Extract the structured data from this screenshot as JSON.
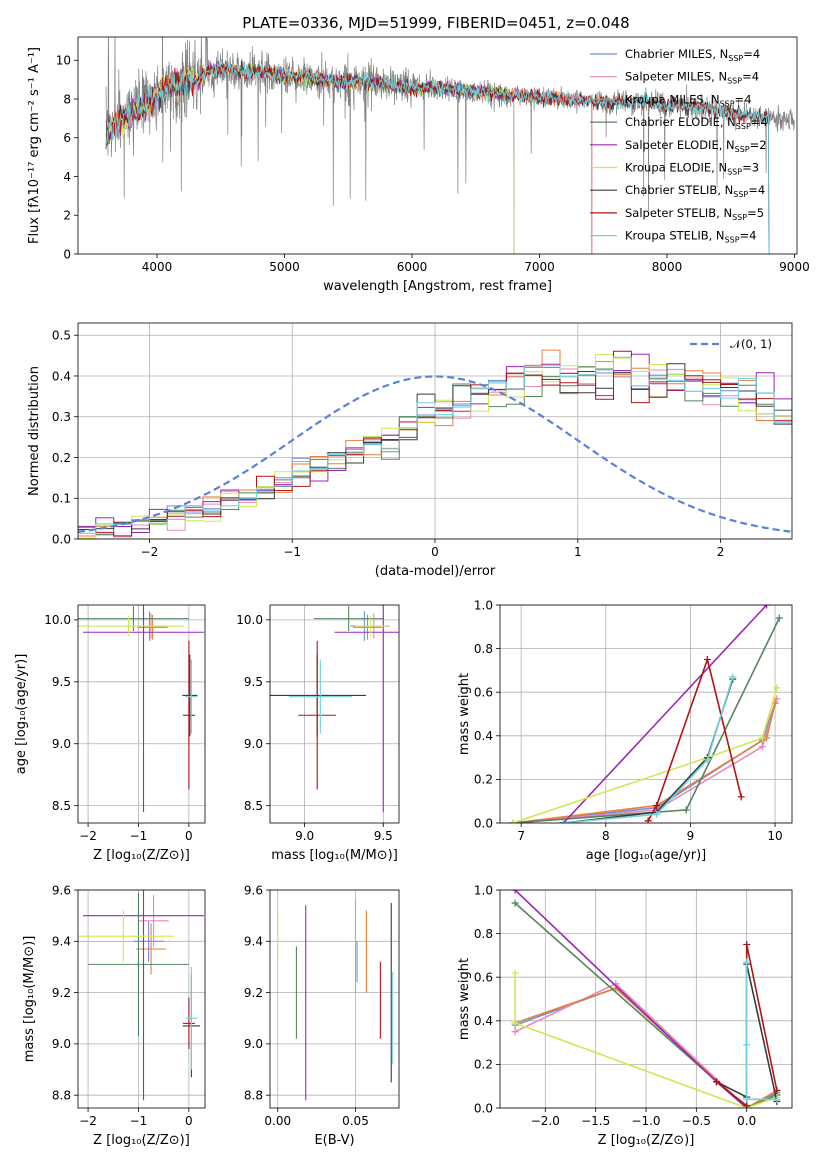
{
  "title": "PLATE=0336, MJD=51999, FIBERID=0451, z=0.048",
  "colors": {
    "Chabrier MILES": "#6f8fd9",
    "Salpeter MILES": "#e889b8",
    "Kroupa MILES": "#e8803a",
    "Chabrier ELODIE": "#55855e",
    "Salpeter ELODIE": "#9b27b5",
    "Kroupa ELODIE": "#cfe84f",
    "Chabrier STELIB": "#3b3b3b",
    "Salpeter STELIB": "#b01515",
    "Kroupa STELIB": "#6fd3de",
    "data": "#7f7f7f",
    "normal": "#5a82d6"
  },
  "chart_data": [
    {
      "type": "line",
      "id": "spectrum",
      "xlabel": "wavelength [Angstrom, rest frame]",
      "ylabel": "Flux [fλ10⁻¹⁷ erg cm⁻² s⁻¹ A⁻¹]",
      "xlim": [
        3380,
        9020
      ],
      "ylim": [
        0,
        11.2
      ],
      "xticks": [
        4000,
        5000,
        6000,
        7000,
        8000,
        9000
      ],
      "yticks": [
        0,
        2,
        4,
        6,
        8,
        10
      ],
      "legend_position": "top-right",
      "legend": [
        {
          "name": "Chabrier MILES",
          "nssp": "4"
        },
        {
          "name": "Salpeter MILES",
          "nssp": "4"
        },
        {
          "name": "Kroupa MILES",
          "nssp": "4"
        },
        {
          "name": "Chabrier ELODIE",
          "nssp": "4"
        },
        {
          "name": "Salpeter ELODIE",
          "nssp": "2"
        },
        {
          "name": "Kroupa ELODIE",
          "nssp": "3"
        },
        {
          "name": "Chabrier STELIB",
          "nssp": "4"
        },
        {
          "name": "Salpeter STELIB",
          "nssp": "5"
        },
        {
          "name": "Kroupa STELIB",
          "nssp": "4"
        }
      ],
      "data_range": [
        3600,
        9000
      ],
      "model_ranges": {
        "MILES": [
          3600,
          7410
        ],
        "ELODIE": [
          3600,
          6800
        ],
        "STELIB": [
          3600,
          8800
        ]
      },
      "continuum": [
        [
          3600,
          6.2
        ],
        [
          3700,
          6.9
        ],
        [
          3800,
          7.3
        ],
        [
          3900,
          7.6
        ],
        [
          4000,
          8.2
        ],
        [
          4100,
          8.7
        ],
        [
          4200,
          9.0
        ],
        [
          4300,
          8.9
        ],
        [
          4400,
          9.4
        ],
        [
          4500,
          9.6
        ],
        [
          4600,
          9.5
        ],
        [
          4700,
          9.3
        ],
        [
          4800,
          9.4
        ],
        [
          5000,
          9.2
        ],
        [
          5200,
          9.1
        ],
        [
          5400,
          8.9
        ],
        [
          5600,
          8.9
        ],
        [
          5800,
          8.8
        ],
        [
          6000,
          8.6
        ],
        [
          6200,
          8.6
        ],
        [
          6400,
          8.4
        ],
        [
          6600,
          8.3
        ],
        [
          6800,
          8.2
        ],
        [
          7000,
          8.1
        ],
        [
          7200,
          8.0
        ],
        [
          7400,
          7.9
        ],
        [
          7600,
          7.8
        ],
        [
          7800,
          7.9
        ],
        [
          8000,
          7.7
        ],
        [
          8300,
          7.5
        ],
        [
          8600,
          7.2
        ],
        [
          8800,
          7.0
        ],
        [
          9000,
          6.9
        ]
      ]
    },
    {
      "type": "line",
      "id": "residuals",
      "xlabel": "(data-model)/error",
      "ylabel": "Normed distribution",
      "xlim": [
        -2.5,
        2.5
      ],
      "ylim": [
        0,
        0.53
      ],
      "xticks": [
        -2,
        -1,
        0,
        1,
        2
      ],
      "yticks": [
        0.0,
        0.1,
        0.2,
        0.3,
        0.4,
        0.5
      ],
      "legend_position": "top-right",
      "normal_label": "𝒩(0, 1)",
      "bin_width": 0.125,
      "bin_start": -2.5,
      "histogram_base": [
        0.02,
        0.025,
        0.03,
        0.04,
        0.05,
        0.055,
        0.065,
        0.075,
        0.09,
        0.1,
        0.12,
        0.14,
        0.16,
        0.175,
        0.19,
        0.21,
        0.24,
        0.26,
        0.285,
        0.305,
        0.32,
        0.34,
        0.355,
        0.365,
        0.375,
        0.385,
        0.39,
        0.395,
        0.4,
        0.4,
        0.4,
        0.4,
        0.395,
        0.39,
        0.38,
        0.375,
        0.36,
        0.35,
        0.33,
        0.315,
        0.295,
        0.275,
        0.25,
        0.23,
        0.21,
        0.19,
        0.17,
        0.15,
        0.13,
        0.115,
        0.1,
        0.09,
        0.075,
        0.065,
        0.055,
        0.045,
        0.04,
        0.035,
        0.03,
        0.027
      ]
    },
    {
      "type": "scatter",
      "id": "age-vs-Z",
      "xlabel": "Z [log₁₀(Z/Z⊙)]",
      "ylabel": "age  [log₁₀(age/yr)]",
      "xlim": [
        -2.2,
        0.32
      ],
      "ylim": [
        8.36,
        10.12
      ],
      "xticks": [
        -2,
        -1,
        0
      ],
      "yticks": [
        8.5,
        9.0,
        9.5,
        10.0
      ],
      "points": [
        {
          "model": "Chabrier MILES",
          "x": -0.78,
          "xe": 0.3,
          "y": 9.95,
          "ye": 0.12
        },
        {
          "model": "Salpeter MILES",
          "x": -0.75,
          "xe": 0.32,
          "y": 9.95,
          "ye": 0.1
        },
        {
          "model": "Kroupa MILES",
          "x": -0.72,
          "xe": 0.3,
          "y": 9.94,
          "ye": 0.1
        },
        {
          "model": "Chabrier ELODIE",
          "x": -1.1,
          "xe": 1.1,
          "y": 10.01,
          "ye": 0.1
        },
        {
          "model": "Salpeter ELODIE",
          "x": -0.9,
          "xe": 1.2,
          "y": 9.9,
          "ye": 1.45
        },
        {
          "model": "Kroupa ELODIE",
          "x": -1.2,
          "xe": 1.1,
          "y": 9.95,
          "ye": 0.08
        },
        {
          "model": "Chabrier STELIB",
          "x": 0.02,
          "xe": 0.15,
          "y": 9.39,
          "ye": 0.33
        },
        {
          "model": "Salpeter STELIB",
          "x": 0.0,
          "xe": 0.12,
          "y": 9.23,
          "ye": 0.6
        },
        {
          "model": "Kroupa STELIB",
          "x": 0.05,
          "xe": 0.12,
          "y": 9.38,
          "ye": 0.3
        }
      ]
    },
    {
      "type": "scatter",
      "id": "age-vs-mass",
      "xlabel": "mass [log₁₀(M/M⊙)]",
      "ylabel": "",
      "xlim": [
        8.78,
        9.6
      ],
      "ylim": [
        8.36,
        10.12
      ],
      "xticks": [
        9.0,
        9.5
      ],
      "yticks": [
        8.5,
        9.0,
        9.5,
        10.0
      ],
      "points": [
        {
          "model": "Chabrier MILES",
          "x": 9.38,
          "xe": 0.09,
          "y": 9.95,
          "ye": 0.12
        },
        {
          "model": "Salpeter MILES",
          "x": 9.44,
          "xe": 0.1,
          "y": 9.95,
          "ye": 0.1
        },
        {
          "model": "Kroupa MILES",
          "x": 9.4,
          "xe": 0.09,
          "y": 9.94,
          "ye": 0.1
        },
        {
          "model": "Chabrier ELODIE",
          "x": 9.28,
          "xe": 0.22,
          "y": 10.01,
          "ye": 0.1
        },
        {
          "model": "Salpeter ELODIE",
          "x": 9.5,
          "xe": 0.31,
          "y": 9.9,
          "ye": 1.45
        },
        {
          "model": "Kroupa ELODIE",
          "x": 9.42,
          "xe": 0.1,
          "y": 9.95,
          "ye": 0.08
        },
        {
          "model": "Chabrier STELIB",
          "x": 9.08,
          "xe": 0.31,
          "y": 9.39,
          "ye": 0.33
        },
        {
          "model": "Salpeter STELIB",
          "x": 9.08,
          "xe": 0.12,
          "y": 9.23,
          "ye": 0.6
        },
        {
          "model": "Kroupa STELIB",
          "x": 9.1,
          "xe": 0.2,
          "y": 9.38,
          "ye": 0.3
        }
      ]
    },
    {
      "type": "line",
      "id": "massweight-vs-age",
      "xlabel": "age  [log₁₀(age/yr)]",
      "ylabel": "mass weight",
      "xlim": [
        6.75,
        10.2
      ],
      "ylim": [
        0,
        1
      ],
      "xticks": [
        7,
        8,
        9,
        10
      ],
      "yticks": [
        0.0,
        0.2,
        0.4,
        0.6,
        0.8,
        1.0
      ],
      "series": [
        {
          "model": "Chabrier MILES",
          "x": [
            6.9,
            8.6,
            9.85,
            10.0
          ],
          "y": [
            0.0,
            0.07,
            0.38,
            0.55
          ]
        },
        {
          "model": "Salpeter MILES",
          "x": [
            6.9,
            8.6,
            9.85,
            10.02
          ],
          "y": [
            0.0,
            0.06,
            0.35,
            0.57
          ]
        },
        {
          "model": "Kroupa MILES",
          "x": [
            6.9,
            8.6,
            9.9,
            10.0
          ],
          "y": [
            0.0,
            0.08,
            0.39,
            0.55
          ]
        },
        {
          "model": "Chabrier ELODIE",
          "x": [
            6.9,
            8.95,
            10.05
          ],
          "y": [
            0.0,
            0.06,
            0.94
          ]
        },
        {
          "model": "Salpeter ELODIE",
          "x": [
            7.5,
            9.9
          ],
          "y": [
            0.0,
            1.0
          ]
        },
        {
          "model": "Kroupa ELODIE",
          "x": [
            6.9,
            9.2,
            9.85,
            10.02
          ],
          "y": [
            0.0,
            0.3,
            0.39,
            0.62
          ]
        },
        {
          "model": "Chabrier STELIB",
          "x": [
            7.5,
            8.6,
            9.2,
            9.5
          ],
          "y": [
            0.0,
            0.05,
            0.3,
            0.66
          ]
        },
        {
          "model": "Salpeter STELIB",
          "x": [
            8.5,
            8.6,
            9.2,
            9.6
          ],
          "y": [
            0.01,
            0.08,
            0.75,
            0.12
          ]
        },
        {
          "model": "Kroupa STELIB",
          "x": [
            7.5,
            8.6,
            9.2,
            9.5
          ],
          "y": [
            0.0,
            0.04,
            0.29,
            0.67
          ]
        }
      ]
    },
    {
      "type": "scatter",
      "id": "mass-vs-Z",
      "xlabel": "Z [log₁₀(Z/Z⊙)]",
      "ylabel": "mass [log₁₀(M/M⊙)]",
      "xlim": [
        -2.2,
        0.32
      ],
      "ylim": [
        8.75,
        9.6
      ],
      "xticks": [
        -2,
        -1,
        0
      ],
      "yticks": [
        8.8,
        9.0,
        9.2,
        9.4,
        9.6
      ],
      "points": [
        {
          "model": "Chabrier MILES",
          "x": -0.8,
          "xe": 0.3,
          "y": 9.4,
          "ye": 0.08
        },
        {
          "model": "Salpeter MILES",
          "x": -0.7,
          "xe": 0.3,
          "y": 9.48,
          "ye": 0.1
        },
        {
          "model": "Kroupa MILES",
          "x": -0.75,
          "xe": 0.3,
          "y": 9.37,
          "ye": 0.1
        },
        {
          "model": "Chabrier ELODIE",
          "x": -1.0,
          "xe": 1.0,
          "y": 9.31,
          "ye": 0.28
        },
        {
          "model": "Salpeter ELODIE",
          "x": -0.9,
          "xe": 1.2,
          "y": 9.5,
          "ye": 0.72
        },
        {
          "model": "Kroupa ELODIE",
          "x": -1.3,
          "xe": 1.0,
          "y": 9.42,
          "ye": 0.1
        },
        {
          "model": "Chabrier STELIB",
          "x": 0.05,
          "xe": 0.17,
          "y": 9.07,
          "ye": 0.2
        },
        {
          "model": "Salpeter STELIB",
          "x": 0.0,
          "xe": 0.12,
          "y": 9.08,
          "ye": 0.1
        },
        {
          "model": "Kroupa STELIB",
          "x": 0.05,
          "xe": 0.12,
          "y": 9.1,
          "ye": 0.2
        }
      ]
    },
    {
      "type": "scatter",
      "id": "mass-vs-EBV",
      "xlabel": "E(B-V)",
      "ylabel": "",
      "xlim": [
        -0.005,
        0.078
      ],
      "ylim": [
        8.75,
        9.6
      ],
      "xticks": [
        0.0,
        0.05
      ],
      "yticks": [
        8.8,
        9.0,
        9.2,
        9.4,
        9.6
      ],
      "points": [
        {
          "model": "Chabrier MILES",
          "x": 0.051,
          "ye": 0.08,
          "y": 9.32
        },
        {
          "model": "Salpeter MILES",
          "x": 0.05,
          "ye": 0.18,
          "y": 9.38
        },
        {
          "model": "Kroupa MILES",
          "x": 0.057,
          "ye": 0.16,
          "y": 9.36
        },
        {
          "model": "Chabrier ELODIE",
          "x": 0.012,
          "ye": 0.18,
          "y": 9.2
        },
        {
          "model": "Salpeter ELODIE",
          "x": 0.018,
          "ye": 0.38,
          "y": 9.16
        },
        {
          "model": "Kroupa ELODIE",
          "x": 0.0,
          "ye": 0.08,
          "y": 9.42
        },
        {
          "model": "Chabrier STELIB",
          "x": 0.073,
          "ye": 0.35,
          "y": 9.2
        },
        {
          "model": "Salpeter STELIB",
          "x": 0.066,
          "ye": 0.15,
          "y": 9.17
        },
        {
          "model": "Kroupa STELIB",
          "x": 0.074,
          "ye": 0.18,
          "y": 9.1
        }
      ]
    },
    {
      "type": "line",
      "id": "massweight-vs-Z",
      "xlabel": "Z [log₁₀(Z/Z⊙)]",
      "ylabel": "mass weight",
      "xlim": [
        -2.45,
        0.45
      ],
      "ylim": [
        0,
        1
      ],
      "xticks": [
        -2.0,
        -1.5,
        -1.0,
        -0.5,
        0.0
      ],
      "yticks": [
        0.0,
        0.2,
        0.4,
        0.6,
        0.8,
        1.0
      ],
      "series": [
        {
          "model": "Chabrier MILES",
          "x": [
            -2.3,
            -1.3,
            0.0,
            0.3
          ],
          "y": [
            0.38,
            0.55,
            0.0,
            0.07
          ]
        },
        {
          "model": "Salpeter MILES",
          "x": [
            -2.3,
            -1.3,
            0.0,
            0.3
          ],
          "y": [
            0.35,
            0.57,
            0.0,
            0.06
          ]
        },
        {
          "model": "Kroupa MILES",
          "x": [
            -2.3,
            -1.3,
            0.0,
            0.3
          ],
          "y": [
            0.39,
            0.55,
            0.0,
            0.08
          ]
        },
        {
          "model": "Chabrier ELODIE",
          "x": [
            -2.3,
            0.0,
            0.3
          ],
          "y": [
            0.94,
            0.0,
            0.06
          ]
        },
        {
          "model": "Salpeter ELODIE",
          "x": [
            -2.3,
            -0.3,
            0.0
          ],
          "y": [
            1.0,
            0.12,
            0.0
          ]
        },
        {
          "model": "Kroupa ELODIE",
          "x": [
            -2.3,
            -2.3,
            0.0,
            0.3
          ],
          "y": [
            0.62,
            0.39,
            0.0,
            0.05
          ]
        },
        {
          "model": "Chabrier STELIB",
          "x": [
            -0.3,
            0.0,
            0.0,
            0.3
          ],
          "y": [
            0.12,
            0.05,
            0.66,
            0.03
          ]
        },
        {
          "model": "Salpeter STELIB",
          "x": [
            -0.3,
            0.0,
            0.0,
            0.3
          ],
          "y": [
            0.12,
            0.01,
            0.75,
            0.08
          ]
        },
        {
          "model": "Kroupa STELIB",
          "x": [
            0.0,
            0.0,
            0.0,
            0.3
          ],
          "y": [
            0.29,
            0.67,
            0.04,
            0.04
          ]
        }
      ]
    }
  ]
}
